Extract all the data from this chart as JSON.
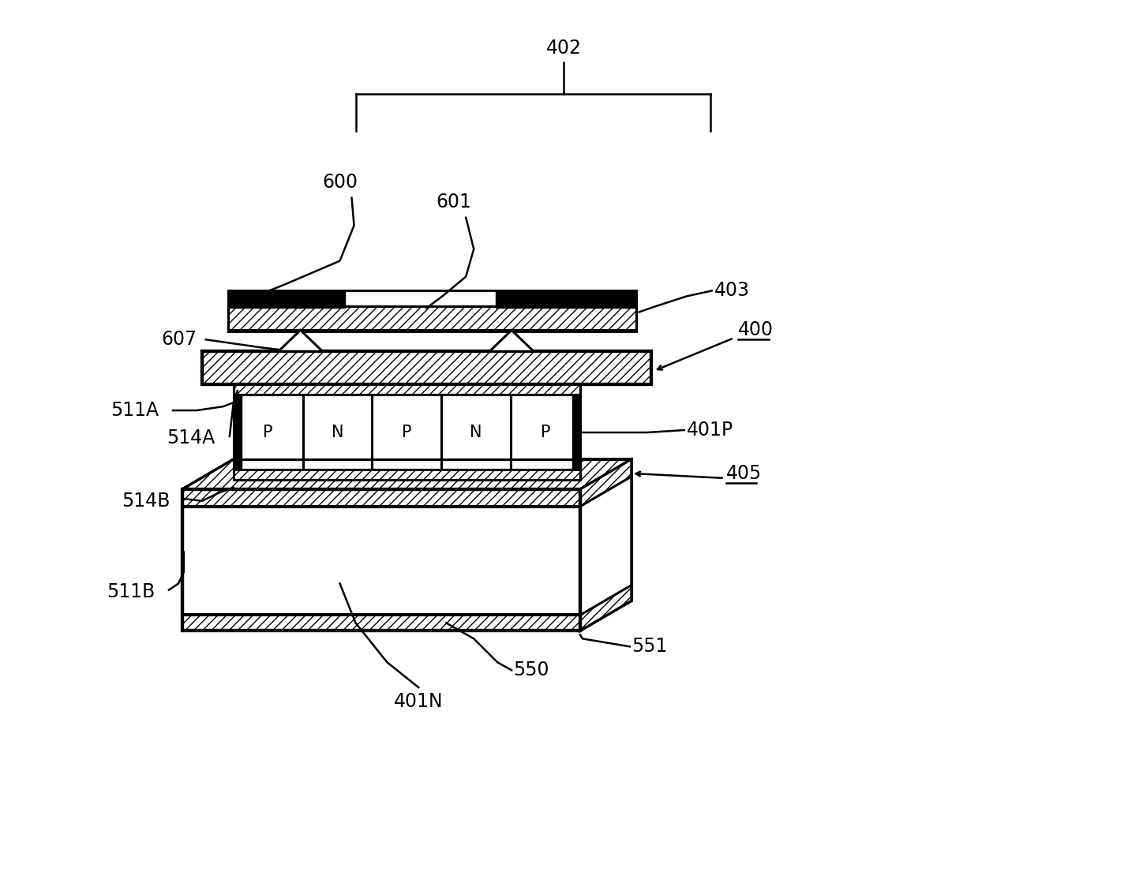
{
  "bg_color": "#ffffff",
  "line_color": "#000000",
  "figure_size": [
    14.29,
    11.05
  ],
  "dpi": 100,
  "te_labels": [
    "P",
    "N",
    "P",
    "N",
    "P"
  ],
  "label_fontsize": 17,
  "te_fontsize": 15
}
